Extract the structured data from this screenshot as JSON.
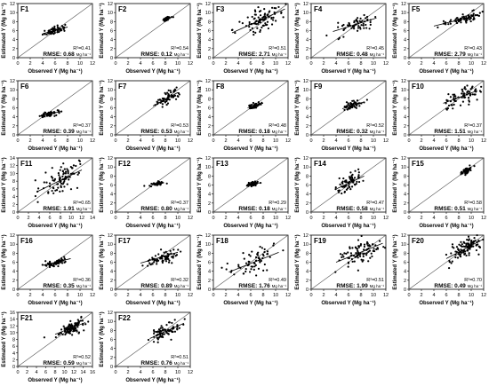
{
  "axis_titles": {
    "x": "Observed Y (Mg ha⁻¹)",
    "y": "Estimated Y (Mg ha⁻¹)"
  },
  "chart_data": [
    {
      "type": "scatter",
      "title": "F1",
      "r2": "R²=0.41",
      "rmse": "RMSE: 0.68",
      "rmse_unit": "Mg ha⁻¹",
      "xlim": [
        0,
        12
      ],
      "ylim": [
        0,
        12
      ],
      "xticks": [
        "0",
        "2",
        "4",
        "6",
        "8",
        "10",
        "12"
      ],
      "yticks": [
        "0",
        "2",
        "4",
        "6",
        "8",
        "10",
        "12"
      ],
      "cx": 5.8,
      "cy": 6.0,
      "sx": 0.8,
      "sy": 0.5,
      "n": 60,
      "fit": [
        [
          4,
          5.3
        ],
        [
          8,
          6.8
        ]
      ],
      "seed": 11
    },
    {
      "type": "scatter",
      "title": "F2",
      "r2": "R²=0.54",
      "rmse": "RMSE: 0.12",
      "rmse_unit": "Mg ha⁻¹",
      "xlim": [
        0,
        12
      ],
      "ylim": [
        0,
        12
      ],
      "xticks": [
        "0",
        "2",
        "4",
        "6",
        "8",
        "10",
        "12"
      ],
      "yticks": [
        "0",
        "2",
        "4",
        "6",
        "8",
        "10",
        "12"
      ],
      "cx": 8.2,
      "cy": 8.6,
      "sx": 0.35,
      "sy": 0.25,
      "n": 40,
      "fit": [
        [
          7.5,
          8.3
        ],
        [
          9,
          9.0
        ]
      ],
      "seed": 12
    },
    {
      "type": "scatter",
      "title": "F3",
      "r2": "R²=0.51",
      "rmse": "RMSE: 2.71",
      "rmse_unit": "Mg ha⁻¹",
      "xlim": [
        0,
        12
      ],
      "ylim": [
        0,
        12
      ],
      "xticks": [
        "0",
        "2",
        "4",
        "6",
        "8",
        "10",
        "12"
      ],
      "yticks": [
        "0",
        "2",
        "4",
        "6",
        "8",
        "10",
        "12"
      ],
      "cx": 7.5,
      "cy": 8.2,
      "sx": 1.8,
      "sy": 1.5,
      "n": 90,
      "fit": [
        [
          3,
          5.5
        ],
        [
          11.5,
          10.8
        ]
      ],
      "seed": 13
    },
    {
      "type": "scatter",
      "title": "F4",
      "r2": "R²=0.45",
      "rmse": "RMSE: 0.48",
      "rmse_unit": "Mg ha⁻¹",
      "xlim": [
        0,
        12
      ],
      "ylim": [
        0,
        12
      ],
      "xticks": [
        "0",
        "2",
        "4",
        "6",
        "8",
        "10",
        "12"
      ],
      "yticks": [
        "0",
        "2",
        "4",
        "6",
        "8",
        "10",
        "12"
      ],
      "cx": 7.0,
      "cy": 7.2,
      "sx": 1.6,
      "sy": 1.1,
      "n": 60,
      "fit": [
        [
          3.5,
          5.8
        ],
        [
          10.5,
          8.8
        ]
      ],
      "seed": 14
    },
    {
      "type": "scatter",
      "title": "F5",
      "r2": "R²=0.43",
      "rmse": "RMSE: 2.79",
      "rmse_unit": "Mg ha⁻¹",
      "xlim": [
        0,
        12
      ],
      "ylim": [
        0,
        12
      ],
      "xticks": [
        "0",
        "2",
        "4",
        "6",
        "8",
        "10",
        "12"
      ],
      "yticks": [
        "0",
        "2",
        "4",
        "6",
        "8",
        "10",
        "12"
      ],
      "cx": 8.5,
      "cy": 8.6,
      "sx": 1.6,
      "sy": 0.6,
      "n": 70,
      "fit": [
        [
          4,
          7.0
        ],
        [
          11,
          9.4
        ]
      ],
      "seed": 15
    },
    {
      "type": "scatter",
      "title": "F6",
      "r2": "R²=0.37",
      "rmse": "RMSE: 0.39",
      "rmse_unit": "Mg ha⁻¹",
      "xlim": [
        0,
        12
      ],
      "ylim": [
        0,
        12
      ],
      "xticks": [
        "0",
        "2",
        "4",
        "6",
        "8",
        "10",
        "12"
      ],
      "yticks": [
        "0",
        "2",
        "4",
        "6",
        "8",
        "10",
        "12"
      ],
      "cx": 5.0,
      "cy": 4.6,
      "sx": 0.8,
      "sy": 0.3,
      "n": 55,
      "fit": [
        [
          3.5,
          4.2
        ],
        [
          7,
          5.2
        ]
      ],
      "seed": 21
    },
    {
      "type": "scatter",
      "title": "F7",
      "r2": "R²=0.53",
      "rmse": "RMSE: 0.53",
      "rmse_unit": "Mg ha⁻¹",
      "xlim": [
        0,
        12
      ],
      "ylim": [
        0,
        12
      ],
      "xticks": [
        "0",
        "2",
        "4",
        "6",
        "8",
        "10",
        "12"
      ],
      "yticks": [
        "0",
        "2",
        "4",
        "6",
        "8",
        "10",
        "12"
      ],
      "cx": 8.2,
      "cy": 8.0,
      "sx": 1.0,
      "sy": 0.9,
      "n": 60,
      "fit": [
        [
          6,
          6.4
        ],
        [
          10,
          9.4
        ]
      ],
      "seed": 22
    },
    {
      "type": "scatter",
      "title": "F8",
      "r2": "R²=0.48",
      "rmse": "RMSE: 0.18",
      "rmse_unit": "Mg ha⁻¹",
      "xlim": [
        0,
        12
      ],
      "ylim": [
        0,
        12
      ],
      "xticks": [
        "0",
        "2",
        "4",
        "6",
        "8",
        "10",
        "12"
      ],
      "yticks": [
        "0",
        "2",
        "4",
        "6",
        "8",
        "10",
        "12"
      ],
      "cx": 6.7,
      "cy": 6.5,
      "sx": 0.55,
      "sy": 0.35,
      "n": 50,
      "fit": [
        [
          5.5,
          6.0
        ],
        [
          8,
          7.0
        ]
      ],
      "seed": 23
    },
    {
      "type": "scatter",
      "title": "F9",
      "r2": "R²=0.52",
      "rmse": "RMSE: 0.32",
      "rmse_unit": "Mg ha⁻¹",
      "xlim": [
        0,
        12
      ],
      "ylim": [
        0,
        12
      ],
      "xticks": [
        "0",
        "2",
        "4",
        "6",
        "8",
        "10",
        "12"
      ],
      "yticks": [
        "0",
        "2",
        "4",
        "6",
        "8",
        "10",
        "12"
      ],
      "cx": 6.8,
      "cy": 6.6,
      "sx": 0.8,
      "sy": 0.5,
      "n": 55,
      "fit": [
        [
          5,
          5.8
        ],
        [
          8.5,
          7.3
        ]
      ],
      "seed": 24
    },
    {
      "type": "scatter",
      "title": "F10",
      "r2": "R²=0.37",
      "rmse": "RMSE: 1.51",
      "rmse_unit": "Mg ha⁻¹",
      "xlim": [
        0,
        12
      ],
      "ylim": [
        0,
        12
      ],
      "xticks": [
        "0",
        "2",
        "4",
        "6",
        "8",
        "10",
        "12"
      ],
      "yticks": [
        "0",
        "2",
        "4",
        "6",
        "8",
        "10",
        "12"
      ],
      "cx": 8.5,
      "cy": 8.4,
      "sx": 1.6,
      "sy": 1.1,
      "n": 75,
      "fit": [
        [
          5.5,
          7.0
        ],
        [
          11,
          9.8
        ]
      ],
      "seed": 25
    },
    {
      "type": "scatter",
      "title": "F11",
      "r2": "R²=0.65",
      "rmse": "RMSE: 1.91",
      "rmse_unit": "Mg ha⁻¹",
      "xlim": [
        0,
        14
      ],
      "ylim": [
        0,
        14
      ],
      "xticks": [
        "0",
        "2",
        "4",
        "6",
        "8",
        "10",
        "12",
        "14"
      ],
      "yticks": [
        "0",
        "2",
        "4",
        "6",
        "8",
        "10",
        "12",
        "14"
      ],
      "cx": 8.0,
      "cy": 8.2,
      "sx": 2.2,
      "sy": 2.0,
      "n": 90,
      "fit": [
        [
          3.5,
          5.2
        ],
        [
          12,
          10.9
        ]
      ],
      "seed": 31
    },
    {
      "type": "scatter",
      "title": "F12",
      "r2": "R²=0.37",
      "rmse": "RMSE: 0.80",
      "rmse_unit": "Mg ha⁻¹",
      "xlim": [
        0,
        12
      ],
      "ylim": [
        0,
        12
      ],
      "xticks": [
        "0",
        "2",
        "4",
        "6",
        "8",
        "10",
        "12"
      ],
      "yticks": [
        "0",
        "2",
        "4",
        "6",
        "8",
        "10",
        "12"
      ],
      "cx": 6.8,
      "cy": 6.3,
      "sx": 0.5,
      "sy": 0.2,
      "n": 45,
      "fit": [
        [
          5.8,
          6.1
        ],
        [
          7.8,
          6.5
        ]
      ],
      "seed": 32
    },
    {
      "type": "scatter",
      "title": "F13",
      "r2": "R²=0.29",
      "rmse": "RMSE: 0.18",
      "rmse_unit": "Mg ha⁻¹",
      "xlim": [
        0,
        12
      ],
      "ylim": [
        0,
        12
      ],
      "xticks": [
        "0",
        "2",
        "4",
        "6",
        "8",
        "10",
        "12"
      ],
      "yticks": [
        "0",
        "2",
        "4",
        "6",
        "8",
        "10",
        "12"
      ],
      "cx": 6.3,
      "cy": 6.2,
      "sx": 0.5,
      "sy": 0.35,
      "n": 50,
      "fit": [
        [
          5.3,
          5.9
        ],
        [
          7.5,
          6.5
        ]
      ],
      "seed": 33
    },
    {
      "type": "scatter",
      "title": "F14",
      "r2": "R²=0.47",
      "rmse": "RMSE: 0.58",
      "rmse_unit": "Mg ha⁻¹",
      "xlim": [
        0,
        12
      ],
      "ylim": [
        0,
        12
      ],
      "xticks": [
        "0",
        "2",
        "4",
        "6",
        "8",
        "10",
        "12"
      ],
      "yticks": [
        "0",
        "2",
        "4",
        "6",
        "8",
        "10",
        "12"
      ],
      "cx": 6.2,
      "cy": 6.6,
      "sx": 1.0,
      "sy": 1.0,
      "n": 70,
      "fit": [
        [
          4,
          5.1
        ],
        [
          8.5,
          8.0
        ]
      ],
      "seed": 34
    },
    {
      "type": "scatter",
      "title": "F15",
      "r2": "R²=0.58",
      "rmse": "RMSE: 0.51",
      "rmse_unit": "Mg ha⁻¹",
      "xlim": [
        0,
        12
      ],
      "ylim": [
        0,
        12
      ],
      "xticks": [
        "0",
        "2",
        "4",
        "6",
        "8",
        "10",
        "12"
      ],
      "yticks": [
        "0",
        "2",
        "4",
        "6",
        "8",
        "10",
        "12"
      ],
      "cx": 9.2,
      "cy": 9.2,
      "sx": 0.45,
      "sy": 0.4,
      "n": 45,
      "fit": [
        [
          8.4,
          8.7
        ],
        [
          10,
          9.7
        ]
      ],
      "seed": 35
    },
    {
      "type": "scatter",
      "title": "F16",
      "r2": "R²=0.36",
      "rmse": "RMSE: 0.35",
      "rmse_unit": "Mg ha⁻¹",
      "xlim": [
        0,
        12
      ],
      "ylim": [
        0,
        12
      ],
      "xticks": [
        "0",
        "2",
        "4",
        "6",
        "8",
        "10",
        "12"
      ],
      "yticks": [
        "0",
        "2",
        "4",
        "6",
        "8",
        "10",
        "12"
      ],
      "cx": 6.2,
      "cy": 6.0,
      "sx": 1.0,
      "sy": 0.5,
      "n": 60,
      "fit": [
        [
          4,
          5.3
        ],
        [
          8.5,
          6.8
        ]
      ],
      "seed": 41
    },
    {
      "type": "scatter",
      "title": "F17",
      "r2": "R²=0.32",
      "rmse": "RMSE: 0.89",
      "rmse_unit": "Mg ha⁻¹",
      "xlim": [
        0,
        12
      ],
      "ylim": [
        0,
        12
      ],
      "xticks": [
        "0",
        "2",
        "4",
        "6",
        "8",
        "10",
        "12"
      ],
      "yticks": [
        "0",
        "2",
        "4",
        "6",
        "8",
        "10",
        "12"
      ],
      "cx": 7.5,
      "cy": 7.0,
      "sx": 1.3,
      "sy": 0.9,
      "n": 70,
      "fit": [
        [
          4,
          5.8
        ],
        [
          10,
          8.2
        ]
      ],
      "seed": 42
    },
    {
      "type": "scatter",
      "title": "F18",
      "r2": "R²=0.49",
      "rmse": "RMSE: 1.76",
      "rmse_unit": "Mg ha⁻¹",
      "xlim": [
        0,
        12
      ],
      "ylim": [
        0,
        12
      ],
      "xticks": [
        "0",
        "2",
        "4",
        "6",
        "8",
        "10",
        "12"
      ],
      "yticks": [
        "0",
        "2",
        "4",
        "6",
        "8",
        "10",
        "12"
      ],
      "cx": 6.5,
      "cy": 6.0,
      "sx": 2.0,
      "sy": 1.6,
      "n": 65,
      "fit": [
        [
          2.5,
          3.8
        ],
        [
          10.5,
          8.2
        ]
      ],
      "seed": 43
    },
    {
      "type": "scatter",
      "title": "F19",
      "r2": "R²=0.51",
      "rmse": "RMSE: 1.99",
      "rmse_unit": "Mg ha⁻¹",
      "xlim": [
        0,
        12
      ],
      "ylim": [
        0,
        12
      ],
      "xticks": [
        "0",
        "2",
        "4",
        "6",
        "8",
        "10",
        "12"
      ],
      "yticks": [
        "0",
        "2",
        "4",
        "6",
        "8",
        "10",
        "12"
      ],
      "cx": 8.0,
      "cy": 8.2,
      "sx": 1.8,
      "sy": 1.5,
      "n": 90,
      "fit": [
        [
          4,
          6.0
        ],
        [
          11.5,
          10.2
        ]
      ],
      "seed": 44
    },
    {
      "type": "scatter",
      "title": "F20",
      "r2": "R²=0.70",
      "rmse": "RMSE: 0.49",
      "rmse_unit": "Mg ha⁻¹",
      "xlim": [
        0,
        12
      ],
      "ylim": [
        0,
        12
      ],
      "xticks": [
        "0",
        "2",
        "4",
        "6",
        "8",
        "10",
        "12"
      ],
      "yticks": [
        "0",
        "2",
        "4",
        "6",
        "8",
        "10",
        "12"
      ],
      "cx": 9.3,
      "cy": 9.3,
      "sx": 1.3,
      "sy": 1.2,
      "n": 110,
      "fit": [
        [
          6,
          6.8
        ],
        [
          11.8,
          11.0
        ]
      ],
      "seed": 45
    },
    {
      "type": "scatter",
      "title": "F21",
      "r2": "R²=0.52",
      "rmse": "RMSE: 0.59",
      "rmse_unit": "Mg ha⁻¹",
      "xlim": [
        0,
        16
      ],
      "ylim": [
        0,
        16
      ],
      "xticks": [
        "0",
        "2",
        "4",
        "6",
        "8",
        "10",
        "12",
        "14",
        "16"
      ],
      "yticks": [
        "0",
        "2",
        "4",
        "6",
        "8",
        "10",
        "12",
        "14",
        "16"
      ],
      "cx": 11.5,
      "cy": 11.3,
      "sx": 1.4,
      "sy": 1.1,
      "n": 100,
      "fit": [
        [
          8,
          9.5
        ],
        [
          14.5,
          13.0
        ]
      ],
      "seed": 51
    },
    {
      "type": "scatter",
      "title": "F22",
      "r2": "R²=0.51",
      "rmse": "RMSE: 0.76",
      "rmse_unit": "Mg ha⁻¹",
      "xlim": [
        0,
        12
      ],
      "ylim": [
        0,
        12
      ],
      "xticks": [
        "0",
        "2",
        "4",
        "6",
        "8",
        "10",
        "12"
      ],
      "yticks": [
        "0",
        "2",
        "4",
        "6",
        "8",
        "10",
        "12"
      ],
      "cx": 8.0,
      "cy": 7.7,
      "sx": 1.2,
      "sy": 1.0,
      "n": 80,
      "fit": [
        [
          5.5,
          6.2
        ],
        [
          11,
          9.6
        ]
      ],
      "seed": 52
    }
  ]
}
